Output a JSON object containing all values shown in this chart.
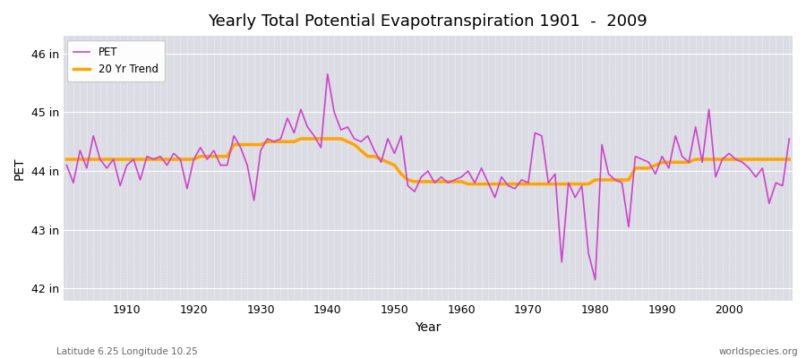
{
  "title": "Yearly Total Potential Evapotranspiration 1901  -  2009",
  "xlabel": "Year",
  "ylabel": "PET",
  "bottom_left": "Latitude 6.25 Longitude 10.25",
  "bottom_right": "worldspecies.org",
  "pet_color": "#CC44CC",
  "trend_color": "#FFA500",
  "bg_color": "#DCDCE4",
  "ylim": [
    41.8,
    46.3
  ],
  "yticks": [
    42,
    43,
    44,
    45,
    46
  ],
  "ytick_labels": [
    "42 in",
    "43 in",
    "44 in",
    "45 in",
    "46 in"
  ],
  "xticks": [
    1910,
    1920,
    1930,
    1940,
    1950,
    1960,
    1970,
    1980,
    1990,
    2000
  ],
  "years": [
    1901,
    1902,
    1903,
    1904,
    1905,
    1906,
    1907,
    1908,
    1909,
    1910,
    1911,
    1912,
    1913,
    1914,
    1915,
    1916,
    1917,
    1918,
    1919,
    1920,
    1921,
    1922,
    1923,
    1924,
    1925,
    1926,
    1927,
    1928,
    1929,
    1930,
    1931,
    1932,
    1933,
    1934,
    1935,
    1936,
    1937,
    1938,
    1939,
    1940,
    1941,
    1942,
    1943,
    1944,
    1945,
    1946,
    1947,
    1948,
    1949,
    1950,
    1951,
    1952,
    1953,
    1954,
    1955,
    1956,
    1957,
    1958,
    1959,
    1960,
    1961,
    1962,
    1963,
    1964,
    1965,
    1966,
    1967,
    1968,
    1969,
    1970,
    1971,
    1972,
    1973,
    1974,
    1975,
    1976,
    1977,
    1978,
    1979,
    1980,
    1981,
    1982,
    1983,
    1984,
    1985,
    1986,
    1987,
    1988,
    1989,
    1990,
    1991,
    1992,
    1993,
    1994,
    1995,
    1996,
    1997,
    1998,
    1999,
    2000,
    2001,
    2002,
    2003,
    2004,
    2005,
    2006,
    2007,
    2008,
    2009
  ],
  "pet": [
    44.1,
    43.8,
    44.35,
    44.05,
    44.6,
    44.2,
    44.05,
    44.2,
    43.75,
    44.1,
    44.2,
    43.85,
    44.25,
    44.2,
    44.25,
    44.1,
    44.3,
    44.2,
    43.7,
    44.2,
    44.4,
    44.2,
    44.35,
    44.1,
    44.1,
    44.6,
    44.4,
    44.1,
    43.5,
    44.35,
    44.55,
    44.5,
    44.55,
    44.9,
    44.65,
    45.05,
    44.75,
    44.6,
    44.4,
    45.65,
    45.0,
    44.7,
    44.75,
    44.55,
    44.5,
    44.6,
    44.35,
    44.15,
    44.55,
    44.3,
    44.6,
    43.75,
    43.65,
    43.9,
    44.0,
    43.8,
    43.9,
    43.8,
    43.85,
    43.9,
    44.0,
    43.8,
    44.05,
    43.8,
    43.55,
    43.9,
    43.75,
    43.7,
    43.85,
    43.8,
    44.65,
    44.6,
    43.8,
    43.95,
    42.45,
    43.8,
    43.55,
    43.75,
    42.6,
    42.15,
    44.45,
    43.95,
    43.85,
    43.8,
    43.05,
    44.25,
    44.2,
    44.15,
    43.95,
    44.25,
    44.05,
    44.6,
    44.25,
    44.15,
    44.75,
    44.15,
    45.05,
    43.9,
    44.2,
    44.3,
    44.2,
    44.15,
    44.05,
    43.9,
    44.05,
    43.45,
    43.8,
    43.75,
    44.55
  ],
  "trend": [
    44.2,
    44.2,
    44.2,
    44.2,
    44.2,
    44.2,
    44.2,
    44.2,
    44.2,
    44.2,
    44.2,
    44.2,
    44.2,
    44.2,
    44.2,
    44.2,
    44.2,
    44.2,
    44.2,
    44.2,
    44.25,
    44.25,
    44.25,
    44.25,
    44.25,
    44.45,
    44.45,
    44.45,
    44.45,
    44.45,
    44.5,
    44.5,
    44.5,
    44.5,
    44.5,
    44.55,
    44.55,
    44.55,
    44.55,
    44.55,
    44.55,
    44.55,
    44.5,
    44.45,
    44.35,
    44.25,
    44.25,
    44.2,
    44.15,
    44.1,
    43.95,
    43.85,
    43.82,
    43.82,
    43.82,
    43.82,
    43.82,
    43.82,
    43.82,
    43.82,
    43.78,
    43.78,
    43.78,
    43.78,
    43.78,
    43.78,
    43.78,
    43.78,
    43.78,
    43.78,
    43.78,
    43.78,
    43.78,
    43.78,
    43.78,
    43.78,
    43.78,
    43.78,
    43.78,
    43.85,
    43.85,
    43.85,
    43.85,
    43.85,
    43.85,
    44.05,
    44.05,
    44.05,
    44.1,
    44.15,
    44.15,
    44.15,
    44.15,
    44.15,
    44.2,
    44.2,
    44.2,
    44.2,
    44.2,
    44.2,
    44.2,
    44.2,
    44.2,
    44.2,
    44.2,
    44.2,
    44.2,
    44.2,
    44.2
  ]
}
